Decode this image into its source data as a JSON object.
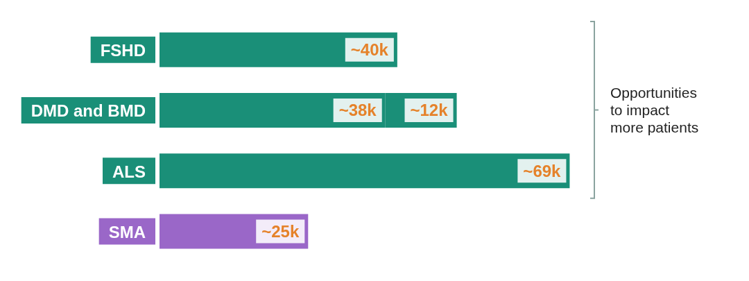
{
  "chart_data": {
    "type": "bar",
    "orientation": "horizontal",
    "stacked": true,
    "tick_labels": "y",
    "categories": [
      "FSHD",
      "DMD and BMD",
      "ALS",
      "SMA"
    ],
    "series": [
      {
        "values": [
          40,
          38,
          69,
          25
        ],
        "colors": [
          "#1a8f78",
          "#1a8f78",
          "#1a8f78",
          "#9a67c8"
        ],
        "value_labels": [
          "~40k",
          "~38k",
          "~69k",
          "~25k"
        ]
      },
      {
        "values": [
          null,
          12,
          null,
          null
        ],
        "color": "#1a8f78",
        "value_labels": [
          null,
          "~12k",
          null,
          null
        ]
      }
    ],
    "annotations": [
      "Opportunities to impact more patients"
    ]
  }
}
